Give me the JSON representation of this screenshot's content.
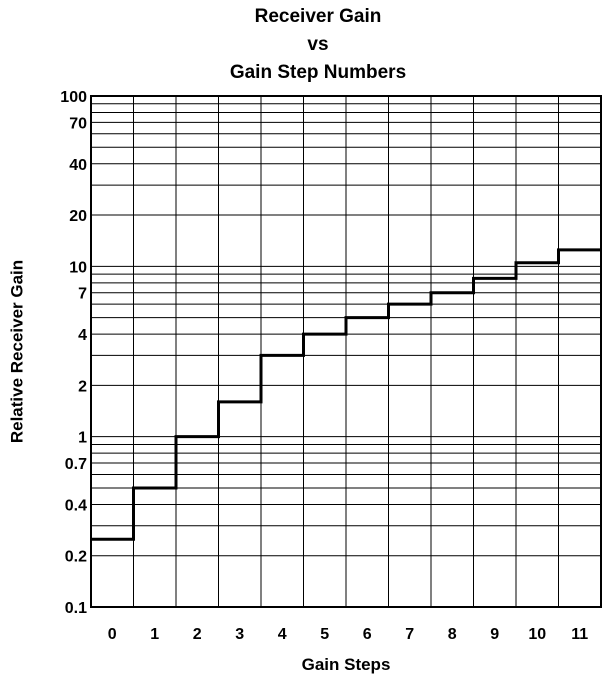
{
  "chart_data": {
    "type": "line",
    "step": true,
    "title": [
      "Receiver Gain",
      "vs",
      "Gain Step Numbers"
    ],
    "xlabel": "Gain Steps",
    "ylabel": "Relative Receiver Gain",
    "yscale": "log",
    "ylim": [
      0.1,
      100
    ],
    "x": [
      0,
      1,
      2,
      3,
      4,
      5,
      6,
      7,
      8,
      9,
      10,
      11
    ],
    "y": [
      0.25,
      0.5,
      1.0,
      1.6,
      3.0,
      4.0,
      5.0,
      6.0,
      7.0,
      8.5,
      10.5,
      12.5
    ],
    "x_tick_labels": [
      "0",
      "1",
      "2",
      "3",
      "4",
      "5",
      "6",
      "7",
      "8",
      "9",
      "10",
      "11"
    ],
    "y_tick_labels": [
      {
        "value": 100,
        "label": "100"
      },
      {
        "value": 70,
        "label": "70"
      },
      {
        "value": 40,
        "label": "40"
      },
      {
        "value": 20,
        "label": "20"
      },
      {
        "value": 10,
        "label": "10"
      },
      {
        "value": 7,
        "label": "7"
      },
      {
        "value": 4,
        "label": "4"
      },
      {
        "value": 2,
        "label": "2"
      },
      {
        "value": 1,
        "label": "1"
      },
      {
        "value": 0.7,
        "label": "0.7"
      },
      {
        "value": 0.4,
        "label": "0.4"
      },
      {
        "value": 0.2,
        "label": "0.2"
      },
      {
        "value": 0.1,
        "label": "0.1"
      }
    ],
    "grid": true,
    "line_color": "#000000"
  }
}
